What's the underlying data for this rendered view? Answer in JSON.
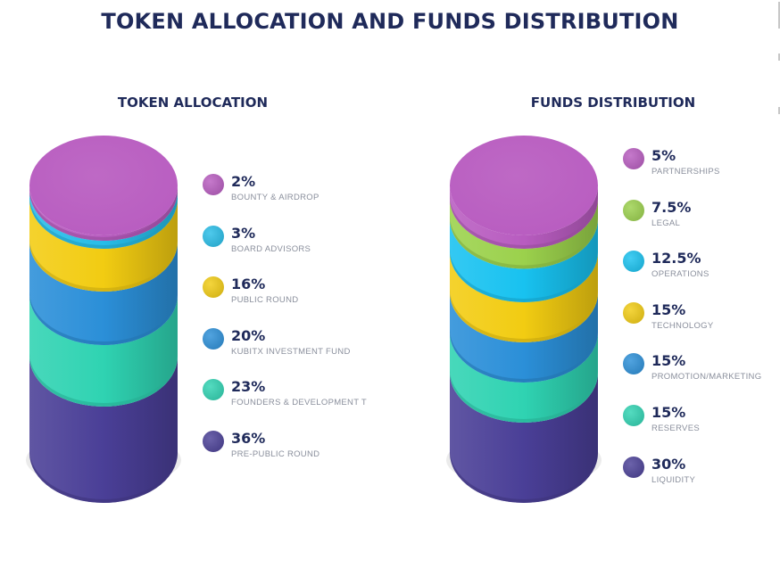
{
  "title": "TOKEN ALLOCATION AND FUNDS DISTRIBUTION",
  "chart_data": [
    {
      "type": "pie",
      "title": "TOKEN ALLOCATION",
      "slices": [
        {
          "label": "BOUNTY & AIRDROP",
          "value": 2,
          "display": "2%",
          "color": "#b85cc0"
        },
        {
          "label": "BOARD ADVISORS",
          "value": 3,
          "display": "3%",
          "color": "#27bde8"
        },
        {
          "label": "PUBLIC ROUND",
          "value": 16,
          "display": "16%",
          "color": "#f2cc12"
        },
        {
          "label": "KUBITX INVESTMENT FUND",
          "value": 20,
          "display": "20%",
          "color": "#2b8fd8"
        },
        {
          "label": "FOUNDERS & DEVELOPMENT T",
          "value": 23,
          "display": "23%",
          "color": "#2fd3b2"
        },
        {
          "label": "PRE-PUBLIC ROUND",
          "value": 36,
          "display": "36%",
          "color": "#4a3f97"
        }
      ]
    },
    {
      "type": "pie",
      "title": "FUNDS DISTRIBUTION",
      "slices": [
        {
          "label": "PARTNERSHIPS",
          "value": 5,
          "display": "5%",
          "color": "#b85cc0"
        },
        {
          "label": "LEGAL",
          "value": 7.5,
          "display": "7.5%",
          "color": "#9bd14c"
        },
        {
          "label": "OPERATIONS",
          "value": 12.5,
          "display": "12.5%",
          "color": "#18c2f0"
        },
        {
          "label": "TECHNOLOGY",
          "value": 15,
          "display": "15%",
          "color": "#f2cc12"
        },
        {
          "label": "PROMOTION/MARKETING",
          "value": 15,
          "display": "15%",
          "color": "#2b8fd8"
        },
        {
          "label": "RESERVES",
          "value": 15,
          "display": "15%",
          "color": "#2fd3b2"
        },
        {
          "label": "LIQUIDITY",
          "value": 30,
          "display": "30%",
          "color": "#4a3f97"
        }
      ]
    }
  ]
}
